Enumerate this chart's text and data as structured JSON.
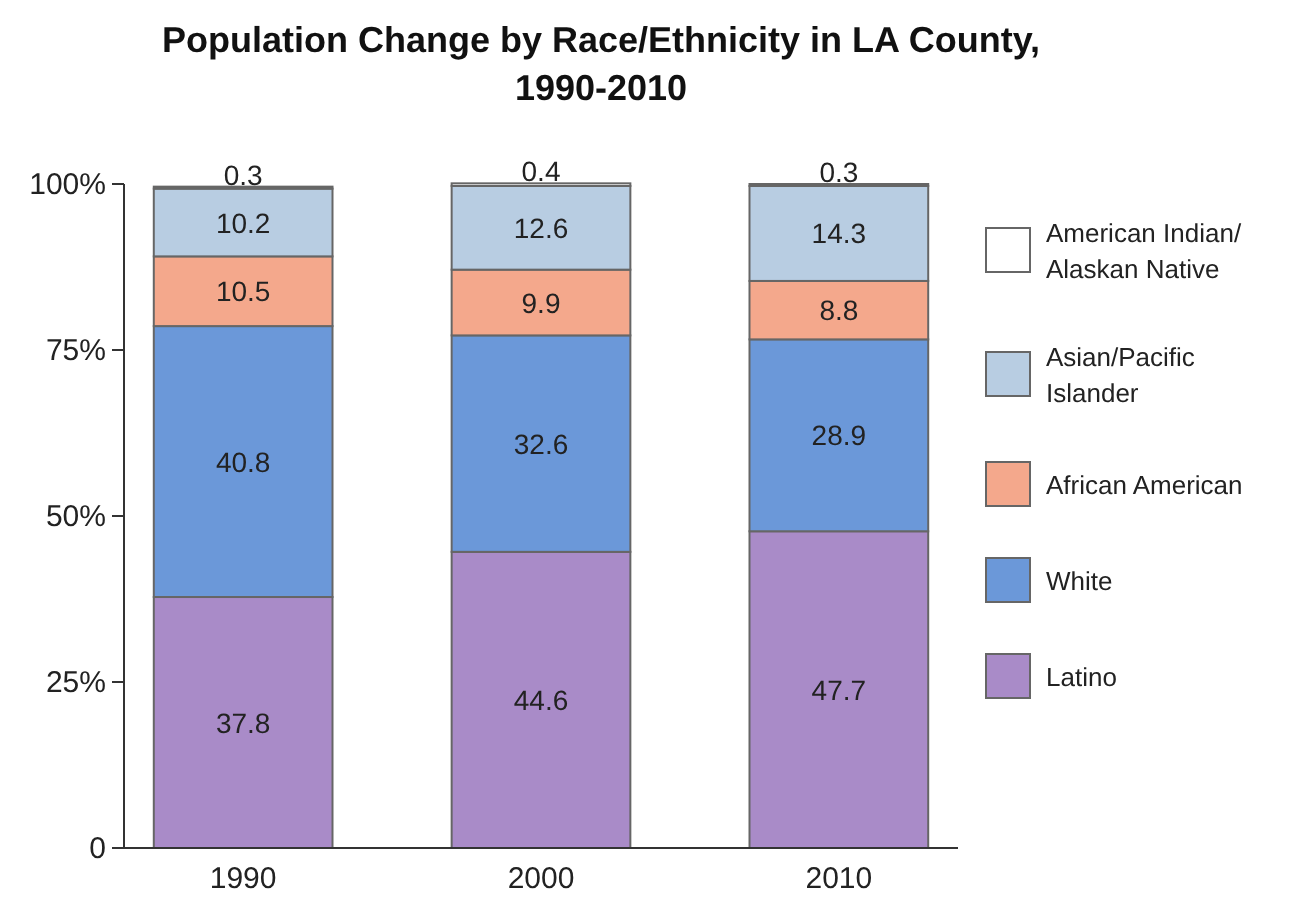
{
  "chart_data": {
    "type": "bar",
    "title": "Population Change by Race/Ethnicity in LA County, 1990-2010",
    "categories": [
      "1990",
      "2000",
      "2010"
    ],
    "stacked": true,
    "data_labels": true,
    "legend": "right",
    "grid": false,
    "ylim": [
      0,
      100
    ],
    "yticks": [
      0,
      {
        "value": 25,
        "label": "25%"
      },
      {
        "value": 50,
        "label": "50%"
      },
      {
        "value": 75,
        "label": "75%"
      },
      {
        "value": 100,
        "label": "100%"
      }
    ],
    "series": [
      {
        "name": "Latino",
        "color": "#a98bc8",
        "values": [
          37.8,
          44.6,
          47.7
        ]
      },
      {
        "name": "White",
        "color": "#6b98d9",
        "values": [
          40.8,
          32.6,
          28.9
        ]
      },
      {
        "name": "African American",
        "color": "#f4a88c",
        "values": [
          10.5,
          9.9,
          8.8
        ]
      },
      {
        "name": "Asian/Pacific Islander",
        "color": "#b8cde2",
        "values": [
          10.2,
          12.6,
          14.3
        ]
      },
      {
        "name": "American Indian/Alaskan Native",
        "color": "#ffffff",
        "values": [
          0.3,
          0.4,
          0.3
        ]
      }
    ]
  }
}
